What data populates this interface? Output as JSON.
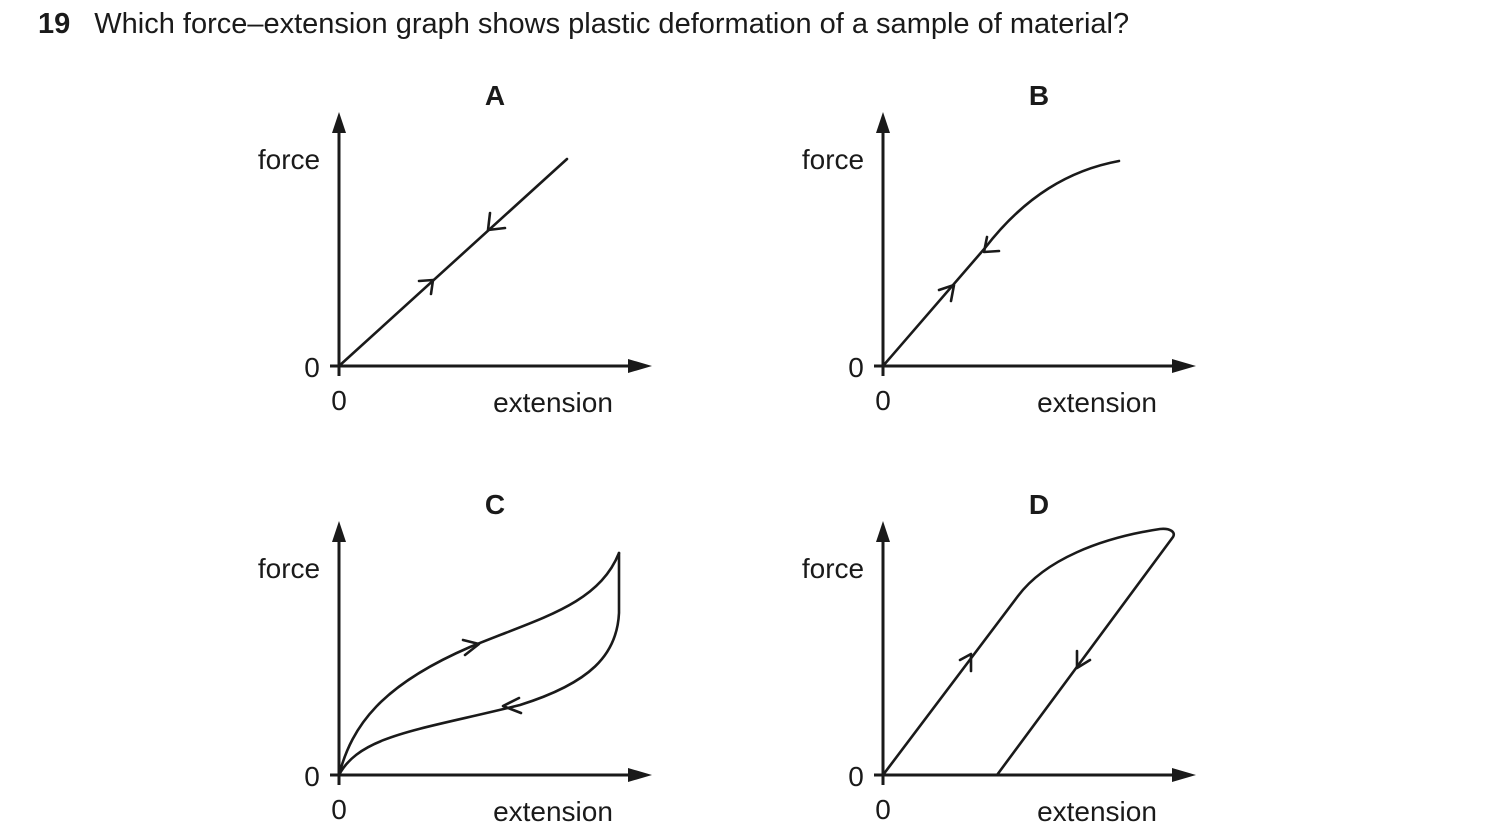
{
  "question": {
    "number": "19",
    "text": "Which force–extension graph shows plastic deformation of a sample of material?"
  },
  "graphs": [
    {
      "letter": "A",
      "y_label": "force",
      "x_label": "extension",
      "origin_x": "0",
      "origin_y": "0"
    },
    {
      "letter": "B",
      "y_label": "force",
      "x_label": "extension",
      "origin_x": "0",
      "origin_y": "0"
    },
    {
      "letter": "C",
      "y_label": "force",
      "x_label": "extension",
      "origin_x": "0",
      "origin_y": "0"
    },
    {
      "letter": "D",
      "y_label": "force",
      "x_label": "extension",
      "origin_x": "0",
      "origin_y": "0"
    }
  ],
  "colors": {
    "ink": "#1a1a1a",
    "background": "#ffffff"
  }
}
